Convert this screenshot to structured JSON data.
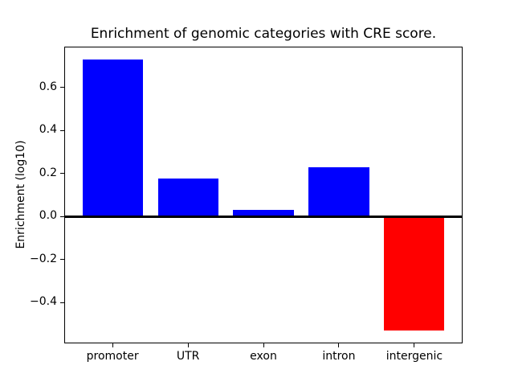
{
  "figure": {
    "background_color": "#ffffff"
  },
  "chart_data": {
    "type": "bar",
    "title": "Enrichment of genomic categories with CRE score.",
    "xlabel": "",
    "ylabel": "Enrichment (log10)",
    "categories": [
      "promoter",
      "UTR",
      "exon",
      "intron",
      "intergenic"
    ],
    "values": [
      0.73,
      0.175,
      0.03,
      0.23,
      -0.53
    ],
    "bar_colors": [
      "#0000ff",
      "#0000ff",
      "#0000ff",
      "#0000ff",
      "#ff0000"
    ],
    "positive_color": "#0000ff",
    "negative_color": "#ff0000",
    "ylim": [
      -0.59,
      0.79
    ],
    "yticks": [
      0.6,
      0.4,
      0.2,
      0.0,
      -0.2,
      -0.4
    ],
    "ytick_labels": [
      "0.6",
      "0.4",
      "0.2",
      "0.0",
      "−0.2",
      "−0.4"
    ],
    "zero_line": {
      "y": 0.0,
      "color": "#000000"
    },
    "grid": false,
    "legend": null,
    "bar_width_fraction": 0.8
  }
}
